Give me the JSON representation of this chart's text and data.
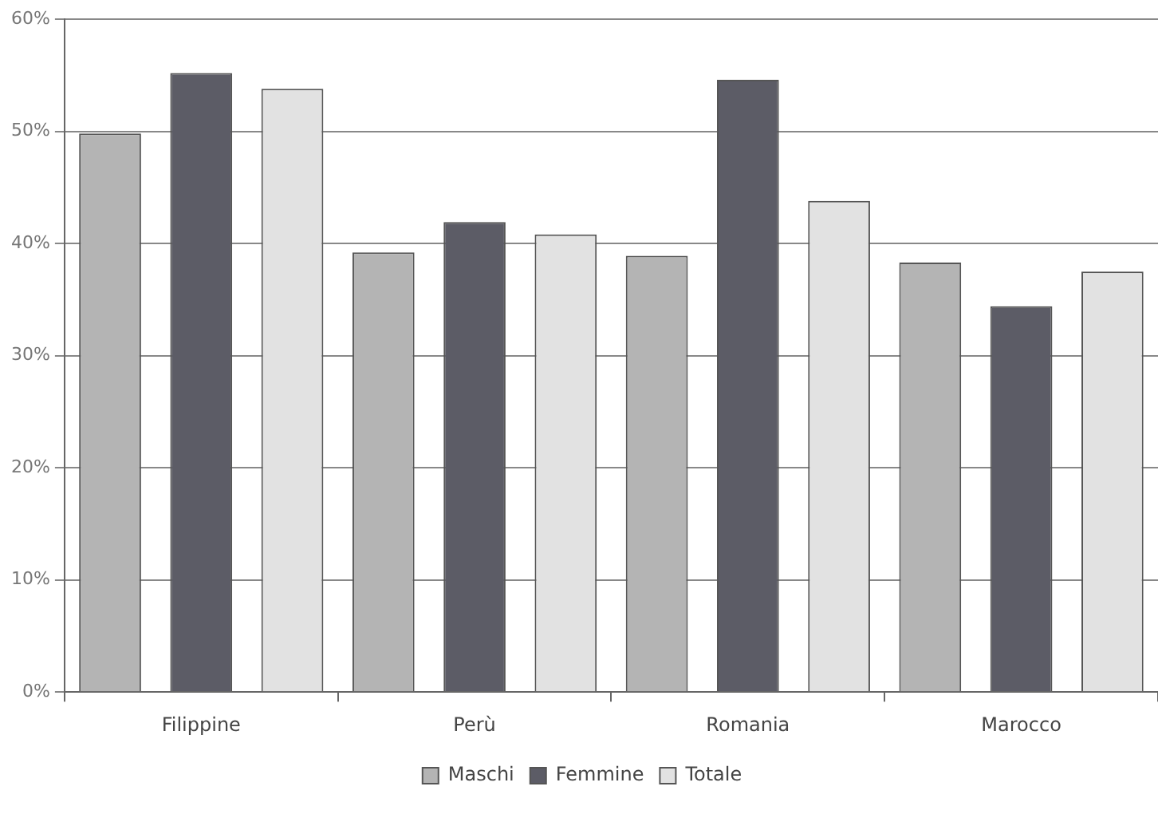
{
  "chart_data": {
    "type": "bar",
    "categories": [
      "Filippine",
      "Perù",
      "Romania",
      "Marocco"
    ],
    "series": [
      {
        "name": "Maschi",
        "color": "#b4b4b4",
        "values": [
          49.8,
          39.2,
          38.9,
          38.3
        ]
      },
      {
        "name": "Femmine",
        "color": "#5c5c66",
        "values": [
          55.2,
          41.9,
          54.6,
          34.4
        ]
      },
      {
        "name": "Totale",
        "color": "#e2e2e2",
        "values": [
          53.8,
          40.8,
          43.8,
          37.5
        ]
      }
    ],
    "ylim": [
      0,
      60
    ],
    "yticks": [
      {
        "value": 0,
        "label": "0%"
      },
      {
        "value": 10,
        "label": "10%"
      },
      {
        "value": 20,
        "label": "20%"
      },
      {
        "value": 30,
        "label": "30%"
      },
      {
        "value": 40,
        "label": "40%"
      },
      {
        "value": 50,
        "label": "50%"
      },
      {
        "value": 60,
        "label": "60%"
      }
    ],
    "grid": "y",
    "legend": "bottom"
  }
}
